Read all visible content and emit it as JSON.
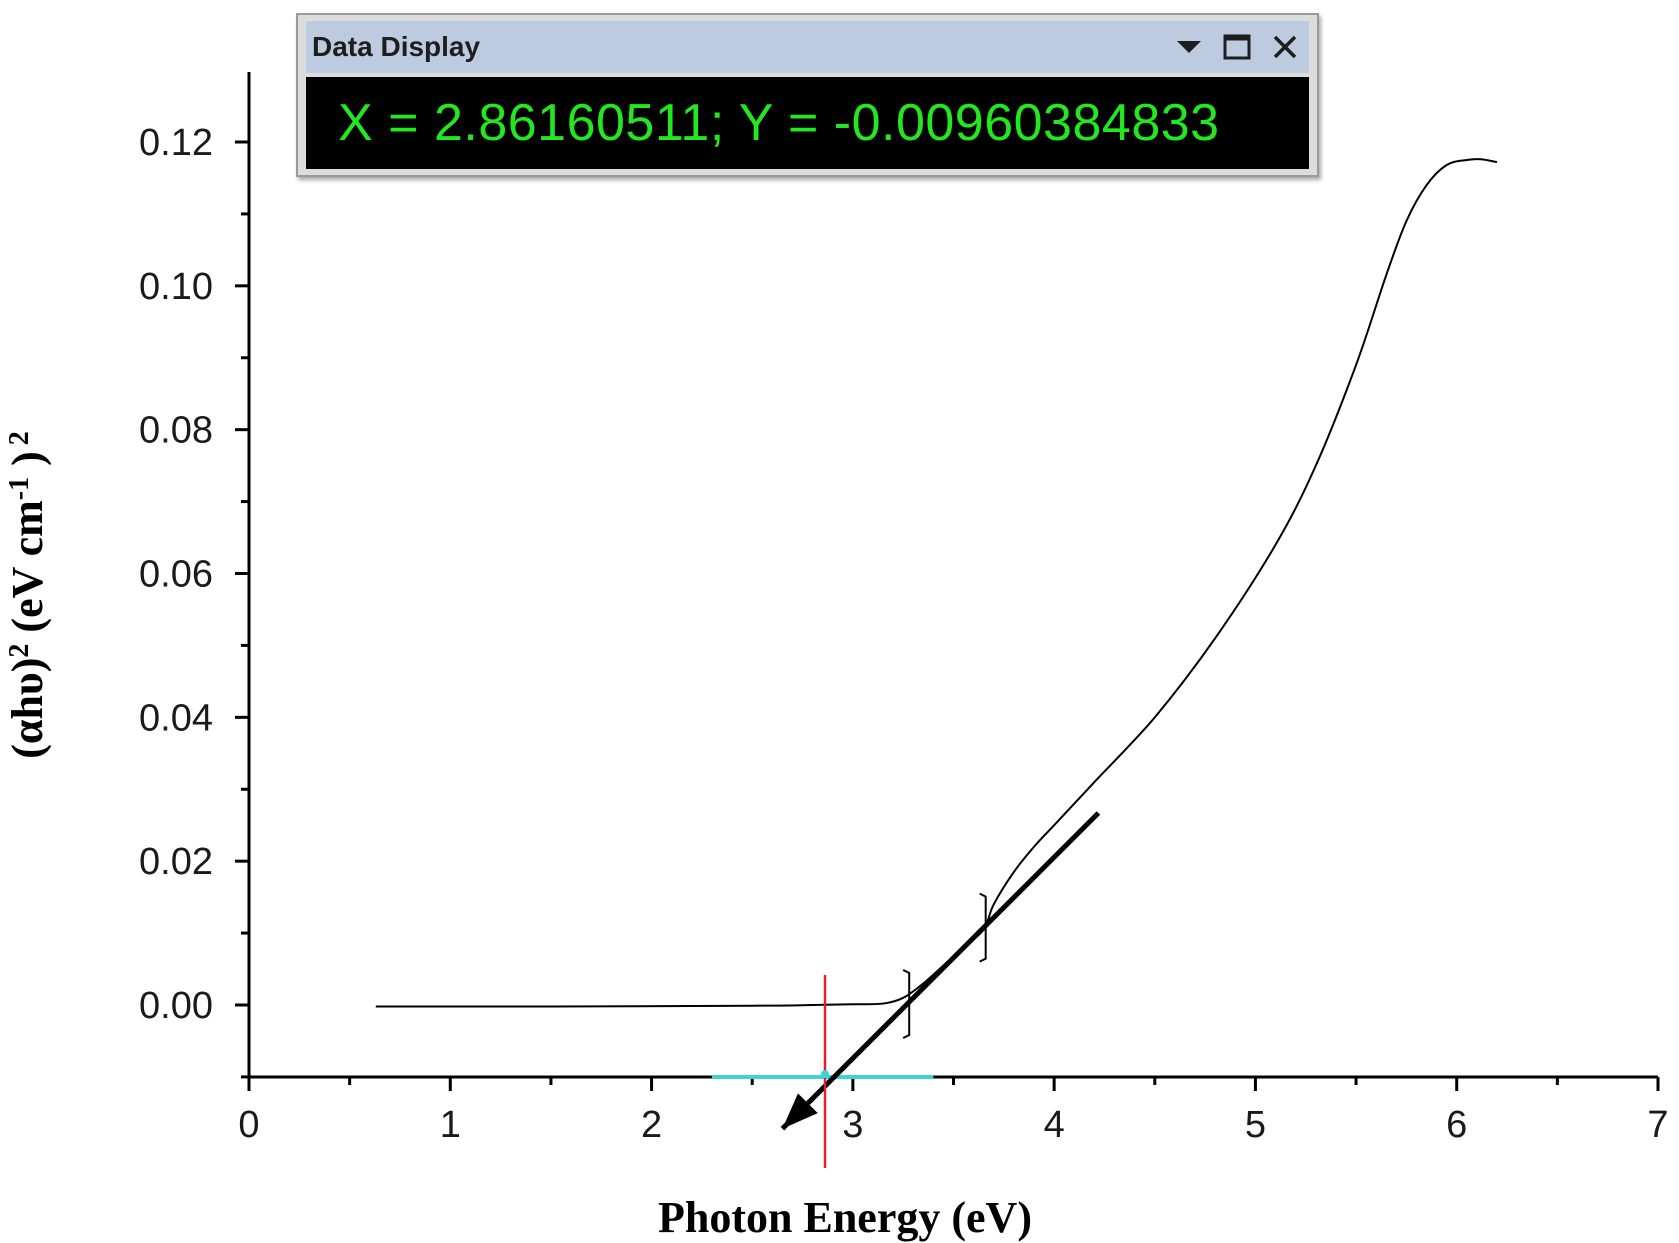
{
  "data_display": {
    "title": "Data Display",
    "readout": "X = 2.86160511; Y = -0.00960384833",
    "controls": [
      "dropdown-arrow-icon",
      "maximize-icon",
      "close-icon"
    ]
  },
  "chart_data": {
    "type": "line",
    "xlabel": "Photon Energy (eV)",
    "ylabel_parts": {
      "prefix": "(αhυ)",
      "sup1": "2",
      "mid": "(eV cm",
      "sup2": "-1",
      "suffix": ")",
      "sup3": "2"
    },
    "xlim": [
      0,
      7
    ],
    "ylim": [
      -0.01,
      0.13
    ],
    "x_ticks": [
      "0",
      "1",
      "2",
      "3",
      "4",
      "5",
      "6",
      "7"
    ],
    "x_tick_values": [
      0,
      1,
      2,
      3,
      4,
      5,
      6,
      7
    ],
    "y_ticks": [
      "0.00",
      "0.02",
      "0.04",
      "0.06",
      "0.08",
      "0.10",
      "0.12"
    ],
    "y_tick_values": [
      0.0,
      0.02,
      0.04,
      0.06,
      0.08,
      0.1,
      0.12
    ],
    "grid": false,
    "series": [
      {
        "color": "#000000",
        "x": [
          0.63,
          1.5,
          2.5,
          2.8,
          3.0,
          3.15,
          3.25,
          3.35,
          3.45,
          3.55,
          3.65,
          3.7,
          3.8,
          3.9,
          4.0,
          4.2,
          4.5,
          4.8,
          5.1,
          5.3,
          5.5,
          5.65,
          5.75,
          5.85,
          5.95,
          6.05,
          6.12,
          6.2
        ],
        "y": [
          -0.0002,
          -0.0002,
          -0.0001,
          0.0,
          0.0001,
          0.0002,
          0.001,
          0.003,
          0.0055,
          0.008,
          0.0105,
          0.014,
          0.0185,
          0.022,
          0.025,
          0.031,
          0.04,
          0.051,
          0.064,
          0.075,
          0.089,
          0.1015,
          0.109,
          0.114,
          0.1168,
          0.1175,
          0.1176,
          0.1172
        ]
      }
    ],
    "fit_line": {
      "color": "#000000",
      "x_start": 4.22,
      "y_start": 0.0267,
      "x_end": 2.65,
      "y_end": -0.0172
    },
    "fit_range_markers_x": [
      3.27,
      3.65
    ],
    "intercept": {
      "x": 2.86160511,
      "y": -0.00960384833,
      "line_color": "#e0202a"
    },
    "baseline": {
      "x_start": 2.3,
      "x_end": 3.4,
      "color": "#3fd4d4"
    }
  }
}
